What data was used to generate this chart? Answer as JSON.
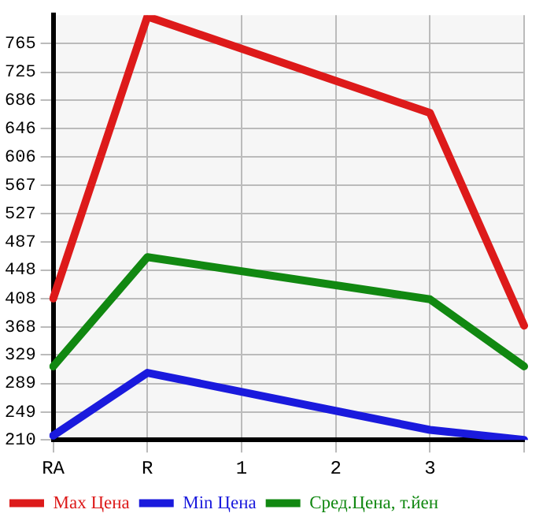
{
  "chart_data": {
    "type": "line",
    "categories": [
      "RA",
      "R",
      "1",
      "2",
      "3",
      null
    ],
    "series": [
      {
        "name": "Max Цена",
        "color": "#dd1a1a",
        "values": [
          408,
          803,
          null,
          null,
          668,
          370
        ]
      },
      {
        "name": "Min Цена",
        "color": "#1a1add",
        "values": [
          216,
          304,
          null,
          null,
          224,
          210
        ]
      },
      {
        "name": "Сред.Цена, т.йен",
        "color": "#118811",
        "values": [
          313,
          466,
          null,
          null,
          407,
          313
        ]
      }
    ],
    "ylim": [
      210,
      805
    ],
    "yticks": [
      210,
      249,
      289,
      329,
      368,
      408,
      448,
      487,
      527,
      567,
      606,
      646,
      686,
      725,
      765
    ],
    "grid": true,
    "legend": "bottom",
    "marker": "none",
    "line_style": "solid"
  }
}
